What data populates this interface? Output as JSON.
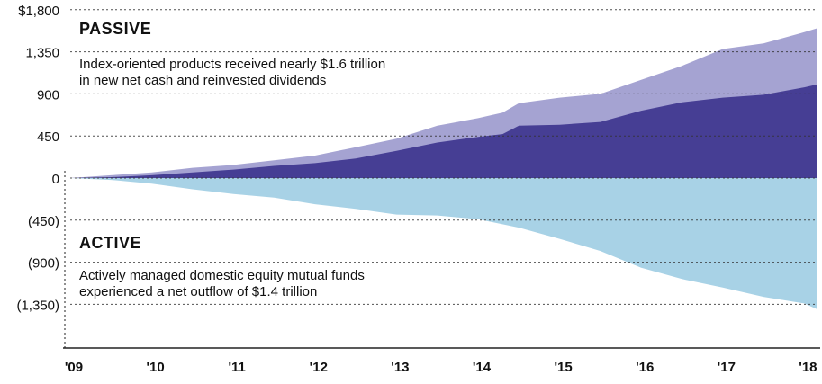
{
  "chart_data": {
    "type": "area",
    "title": "",
    "xlabel": "",
    "ylabel": "",
    "x_ticks": [
      "'09",
      "'10",
      "'11",
      "'12",
      "'13",
      "'14",
      "'15",
      "'16",
      "'17",
      "'18"
    ],
    "x_range": [
      2009,
      2018.15
    ],
    "y_ticks": [
      "$1,800",
      "1,350",
      "900",
      "450",
      "0",
      "(450)",
      "(900)",
      "(1,350)"
    ],
    "y_tick_values": [
      1800,
      1350,
      900,
      450,
      0,
      -450,
      -900,
      -1350
    ],
    "ylim": [
      -1620,
      1800
    ],
    "grid": "horizontal dotted",
    "colors": {
      "passive_total": "#a5a3d2",
      "passive_inner": "#463e94",
      "active": "#a8d2e6",
      "grid": "#333333"
    },
    "series": [
      {
        "key": "passive_total",
        "x": [
          2009.0,
          2009.5,
          2010.0,
          2010.5,
          2011.0,
          2011.5,
          2012.0,
          2012.5,
          2013.0,
          2013.5,
          2014.0,
          2014.3,
          2014.5,
          2015.0,
          2015.5,
          2016.0,
          2016.5,
          2017.0,
          2017.5,
          2018.0,
          2018.15
        ],
        "y": [
          0,
          30,
          60,
          110,
          140,
          190,
          240,
          330,
          420,
          560,
          640,
          700,
          800,
          860,
          900,
          1050,
          1200,
          1380,
          1440,
          1560,
          1600
        ]
      },
      {
        "key": "passive_inner",
        "x": [
          2009.0,
          2009.5,
          2010.0,
          2010.5,
          2011.0,
          2011.5,
          2012.0,
          2012.5,
          2013.0,
          2013.5,
          2014.0,
          2014.3,
          2014.5,
          2015.0,
          2015.5,
          2016.0,
          2016.5,
          2017.0,
          2017.5,
          2018.0,
          2018.15
        ],
        "y": [
          0,
          10,
          30,
          60,
          90,
          130,
          160,
          210,
          290,
          380,
          440,
          470,
          560,
          570,
          600,
          720,
          810,
          860,
          890,
          970,
          1000
        ]
      },
      {
        "key": "active",
        "x": [
          2009.0,
          2009.5,
          2010.0,
          2010.5,
          2011.0,
          2011.5,
          2012.0,
          2012.5,
          2013.0,
          2013.5,
          2014.0,
          2014.5,
          2015.0,
          2015.5,
          2016.0,
          2016.5,
          2017.0,
          2017.5,
          2018.0,
          2018.15
        ],
        "y": [
          0,
          -20,
          -60,
          -120,
          -170,
          -210,
          -280,
          -330,
          -390,
          -400,
          -440,
          -530,
          -650,
          -780,
          -960,
          -1080,
          -1170,
          -1270,
          -1340,
          -1400
        ]
      }
    ],
    "annotations": {
      "passive_title": "PASSIVE",
      "passive_text_1": "Index-oriented products received nearly $1.6 trillion",
      "passive_text_2": "in new net cash and reinvested dividends",
      "active_title": "ACTIVE",
      "active_text_1": "Actively managed domestic equity mutual funds",
      "active_text_2": "experienced a net outflow of $1.4 trillion"
    }
  }
}
